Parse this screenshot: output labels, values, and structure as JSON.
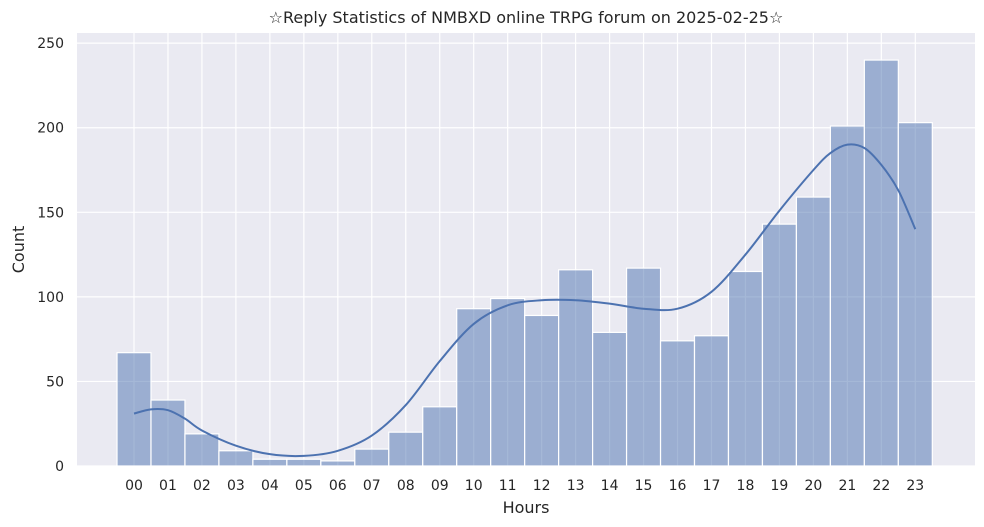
{
  "chart_data": {
    "type": "bar",
    "title": "☆Reply Statistics of NMBXD online TRPG forum on 2025-02-25☆",
    "xlabel": "Hours",
    "ylabel": "Count",
    "categories": [
      "00",
      "01",
      "02",
      "03",
      "04",
      "05",
      "06",
      "07",
      "08",
      "09",
      "10",
      "11",
      "12",
      "13",
      "14",
      "15",
      "16",
      "17",
      "18",
      "19",
      "20",
      "21",
      "22",
      "23"
    ],
    "values": [
      67,
      39,
      19,
      9,
      4,
      4,
      3,
      10,
      20,
      35,
      93,
      99,
      89,
      116,
      79,
      117,
      74,
      77,
      115,
      143,
      159,
      201,
      240,
      203
    ],
    "yticks": [
      0,
      50,
      100,
      150,
      200,
      250
    ],
    "ylim": [
      0,
      256
    ],
    "grid": true,
    "kde_curve": {
      "x": [
        0,
        0.5,
        1,
        1.5,
        2,
        3,
        4,
        5,
        6,
        7,
        8,
        9,
        10,
        11,
        12,
        13,
        14,
        15,
        16,
        17,
        18,
        19,
        20,
        20.5,
        21,
        21.5,
        22,
        22.5,
        23
      ],
      "y": [
        31,
        33.5,
        33,
        28,
        21,
        12,
        7,
        6,
        9,
        18,
        36,
        62,
        84,
        95,
        98,
        98,
        96,
        93,
        93,
        103,
        125,
        151,
        175,
        185,
        190,
        188,
        178,
        163,
        140
      ]
    },
    "colors": {
      "bar": "#4c72b0",
      "kde": "#4c72b0",
      "background": "#eaeaf2",
      "grid": "#ffffff"
    }
  }
}
